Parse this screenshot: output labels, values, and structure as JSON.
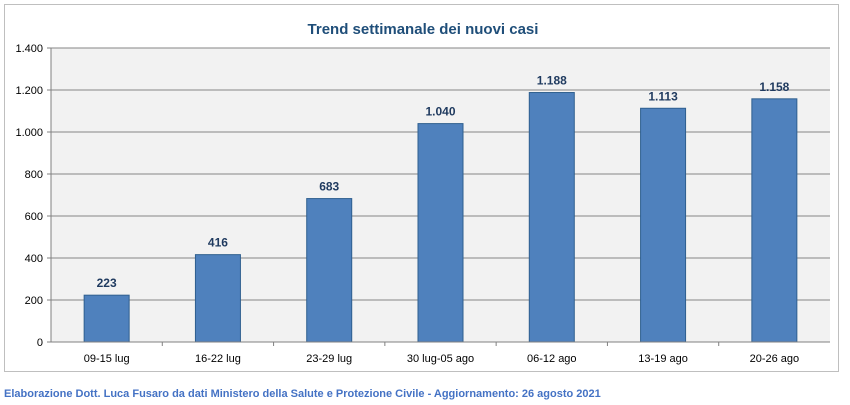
{
  "footer": "Elaborazione Dott. Luca Fusaro da dati Ministero della Salute e Protezione Civile - Aggiornamento: 26 agosto 2021",
  "chart_data": {
    "type": "bar",
    "title": "Trend settimanale dei nuovi casi",
    "categories": [
      "09-15 lug",
      "16-22 lug",
      "23-29 lug",
      "30 lug-05 ago",
      "06-12 ago",
      "13-19 ago",
      "20-26 ago"
    ],
    "values": [
      223,
      416,
      683,
      1040,
      1188,
      1113,
      1158
    ],
    "data_labels": [
      "223",
      "416",
      "683",
      "1.040",
      "1.188",
      "1.113",
      "1.158"
    ],
    "yticks": [
      0,
      200,
      400,
      600,
      800,
      1000,
      1200,
      1400
    ],
    "ytick_labels": [
      "0",
      "200",
      "400",
      "600",
      "800",
      "1.000",
      "1.200",
      "1.400"
    ],
    "ylim": [
      0,
      1400
    ],
    "xlabel": "",
    "ylabel": "",
    "grid": true,
    "legend": "none",
    "colors": {
      "bar": "#4f81bd",
      "bar_edge": "#2f5f8f",
      "grid": "#868686",
      "plot_bg": "#f2f2f2",
      "title": "#1f4e79",
      "footer": "#4472c4"
    }
  }
}
